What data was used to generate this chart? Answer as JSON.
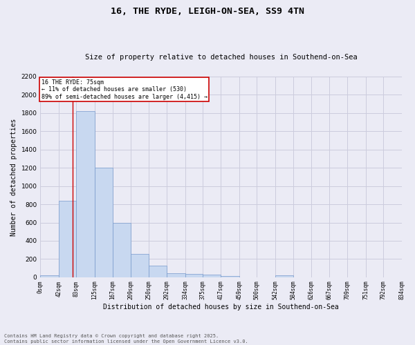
{
  "title1": "16, THE RYDE, LEIGH-ON-SEA, SS9 4TN",
  "title2": "Size of property relative to detached houses in Southend-on-Sea",
  "xlabel": "Distribution of detached houses by size in Southend-on-Sea",
  "ylabel": "Number of detached properties",
  "bar_edges": [
    0,
    42,
    83,
    125,
    167,
    209,
    250,
    292,
    334,
    375,
    417,
    459,
    500,
    542,
    584,
    626,
    667,
    709,
    751,
    792,
    834
  ],
  "bar_heights": [
    20,
    840,
    1820,
    1205,
    595,
    255,
    125,
    47,
    38,
    28,
    15,
    0,
    0,
    22,
    0,
    0,
    0,
    0,
    0,
    0
  ],
  "bar_color": "#c8d8f0",
  "bar_edgecolor": "#7799cc",
  "grid_color": "#ccccdd",
  "background_color": "#ebebf5",
  "ax_background": "#ebebf5",
  "red_line_x": 75,
  "annotation_line1": "16 THE RYDE: 75sqm",
  "annotation_line2": "← 11% of detached houses are smaller (530)",
  "annotation_line3": "89% of semi-detached houses are larger (4,415) →",
  "annotation_box_color": "#cc0000",
  "ylim": [
    0,
    2200
  ],
  "yticks": [
    0,
    200,
    400,
    600,
    800,
    1000,
    1200,
    1400,
    1600,
    1800,
    2000,
    2200
  ],
  "footer_line1": "Contains HM Land Registry data © Crown copyright and database right 2025.",
  "footer_line2": "Contains public sector information licensed under the Open Government Licence v3.0."
}
